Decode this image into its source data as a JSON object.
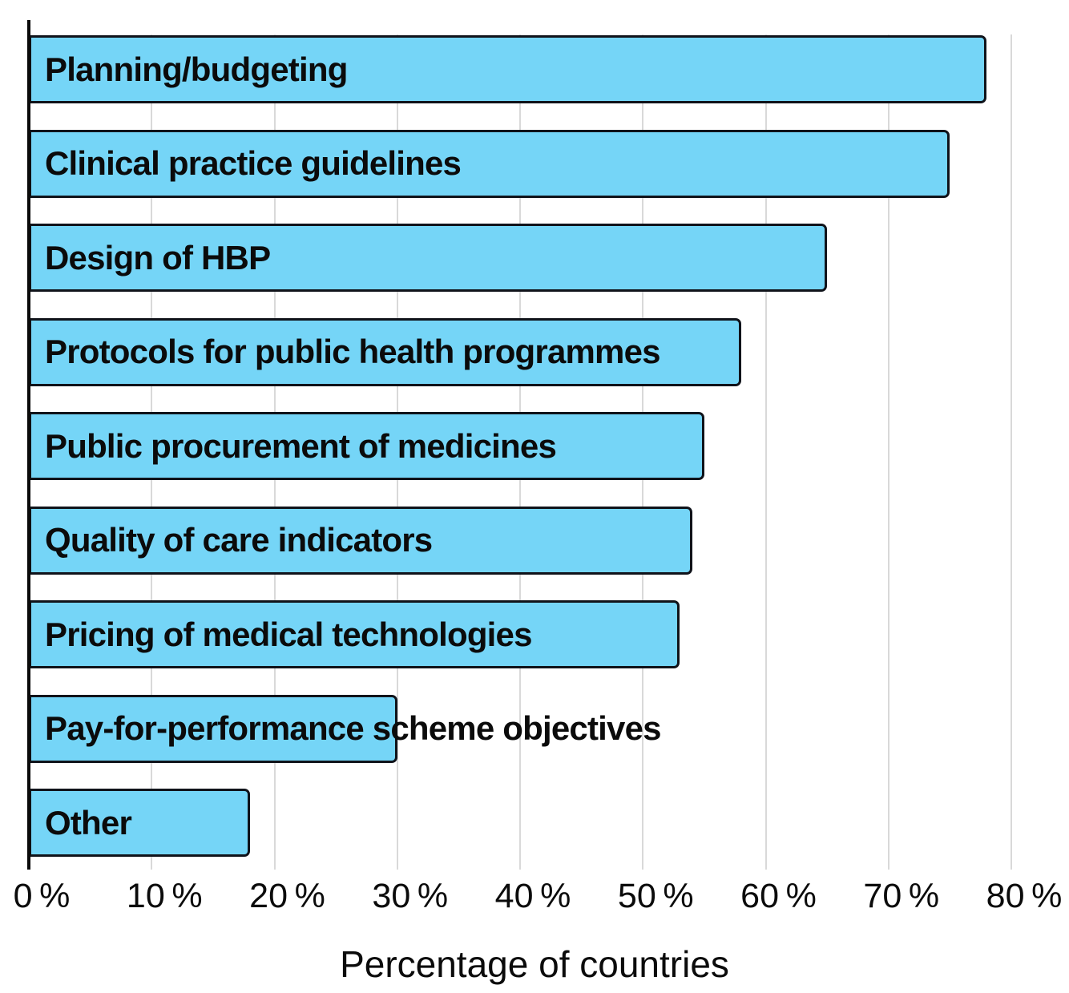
{
  "chart_data": {
    "type": "bar",
    "orientation": "horizontal",
    "title": "",
    "xlabel": "Percentage of countries",
    "ylabel": "",
    "categories": [
      "Planning/budgeting",
      "Clinical practice guidelines",
      "Design of HBP",
      "Protocols for public health programmes",
      "Public procurement of medicines",
      "Quality of care indicators",
      "Pricing of medical technologies",
      "Pay-for-performance scheme objectives",
      "Other"
    ],
    "values": [
      78,
      75,
      65,
      58,
      55,
      54,
      53,
      30,
      18
    ],
    "unit": "%",
    "xlim": [
      0,
      80
    ],
    "xticks": [
      0,
      10,
      20,
      30,
      40,
      50,
      60,
      70,
      80
    ],
    "xtick_labels": [
      "0 %",
      "10 %",
      "20 %",
      "30 %",
      "40 %",
      "50 %",
      "60 %",
      "70 %",
      "80 %"
    ],
    "grid": "vertical-gridlines-every-10pct",
    "legend": "none",
    "bar_labels_inside": true,
    "colors": {
      "bar_fill": "#75D5F7",
      "bar_border": "#10131A",
      "gridline": "#D9D9D9",
      "axis_line": "#0A0A0A",
      "text": "#0B0B0B",
      "background": "#FFFFFF"
    }
  }
}
